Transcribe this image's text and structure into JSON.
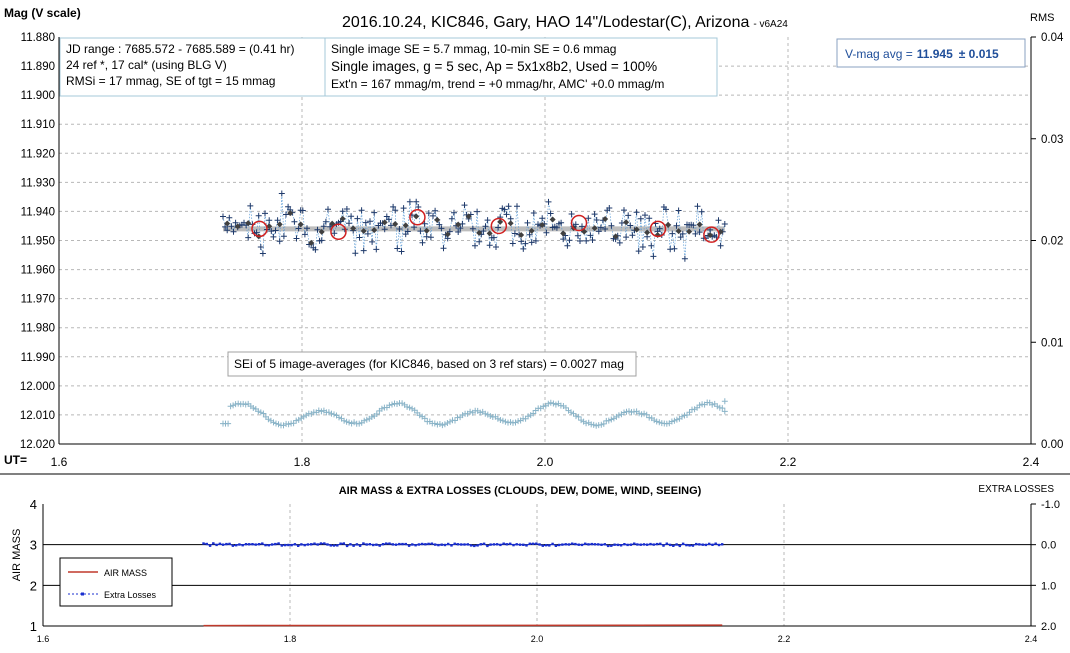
{
  "chart_data": [
    {
      "type": "scatter",
      "title": "2016.10.24, KIC846, Gary, HAO 14\"/Lodestar(C), Arizona",
      "version_tag": "- v6A24",
      "ylabel": "Mag (V scale)",
      "y2label": "RMS",
      "xlabel": "UT=",
      "xlim": [
        1.6,
        2.4
      ],
      "ylim": [
        12.02,
        11.88
      ],
      "y2lim": [
        0.0,
        0.04
      ],
      "x_ticks": [
        "1.6",
        "1.8",
        "2.0",
        "2.2",
        "2.4"
      ],
      "y_ticks": [
        "11.880",
        "11.890",
        "11.900",
        "11.910",
        "11.920",
        "11.930",
        "11.940",
        "11.950",
        "11.960",
        "11.970",
        "11.980",
        "11.990",
        "12.000",
        "12.010",
        "12.020"
      ],
      "y2_ticks": [
        "0.04",
        "0.03",
        "0.02",
        "0.01",
        "0.00"
      ],
      "grid": true,
      "info_box_1": [
        "JD range : 7685.572 - 7685.589 = (0.41 hr)",
        "24 ref *, 17 cal* (using BLG V)",
        "RMSi = 17 mmag, SE of tgt = 15 mmag"
      ],
      "info_box_2": [
        "Single image SE = 5.7 mmag, 10-min SE = 0.6 mmag",
        "Single images, g = 5 sec, Ap = 5x1x8b2, Used = 100%",
        "Ext'n = 167 mmag/m, trend = +0 mmag/hr, AMC' +0.0 mmag/m"
      ],
      "vmag_label": "V-mag avg =",
      "vmag_value": "11.945",
      "vmag_err": "± 0.015",
      "se_note": "SEi of 5 image-averages (for KIC846, based on 3 ref stars) = 0.0027 mag",
      "series": [
        {
          "name": "single images",
          "color": "#1f3a6b",
          "marker": "+",
          "x_range": [
            1.735,
            2.148
          ],
          "count": 240,
          "mean": 11.946,
          "scatter_mag": 0.006
        },
        {
          "name": "5-image averages",
          "color": "#404040",
          "marker": "diamond",
          "mean": 11.946
        },
        {
          "name": "10-min averages",
          "color": "#d02020",
          "marker": "circle",
          "x": [
            1.765,
            1.83,
            1.895,
            1.962,
            2.028,
            2.093,
            2.137
          ],
          "y": [
            11.946,
            11.947,
            11.942,
            11.945,
            11.944,
            11.946,
            11.948
          ]
        },
        {
          "name": "RMS",
          "color": "#8ab4c8",
          "marker": "+",
          "axis": "right",
          "x_range": [
            1.735,
            2.148
          ],
          "y_range": [
            0.0018,
            0.0042
          ]
        }
      ],
      "trend_line": {
        "color": "#bdbdbd",
        "mag": 11.946
      }
    },
    {
      "type": "line",
      "title": "AIR MASS & EXTRA LOSSES (CLOUDS, DEW, DOME, WIND, SEEING)",
      "ylabel": "AIR MASS",
      "y2label": "EXTRA LOSSES",
      "xlim": [
        1.6,
        2.4
      ],
      "ylim": [
        1,
        4
      ],
      "y2lim": [
        2.0,
        -1.0
      ],
      "x_ticks": [
        "1.6",
        "1.8",
        "2.0",
        "2.2",
        "2.4"
      ],
      "y_ticks": [
        "4",
        "3",
        "2",
        "1"
      ],
      "y2_ticks": [
        "-1.0",
        "0.0",
        "1.0",
        "2.0"
      ],
      "legend": {
        "position": "left",
        "entries": [
          "AIR MASS",
          "Extra Losses"
        ]
      },
      "series": [
        {
          "name": "AIR MASS",
          "color": "#c0392b",
          "x": [
            1.73,
            2.15
          ],
          "y": [
            1.01,
            1.02
          ]
        },
        {
          "name": "Extra Losses",
          "color": "#1a2fcf",
          "x_range": [
            1.73,
            2.15
          ],
          "level": 0.0
        }
      ]
    }
  ]
}
